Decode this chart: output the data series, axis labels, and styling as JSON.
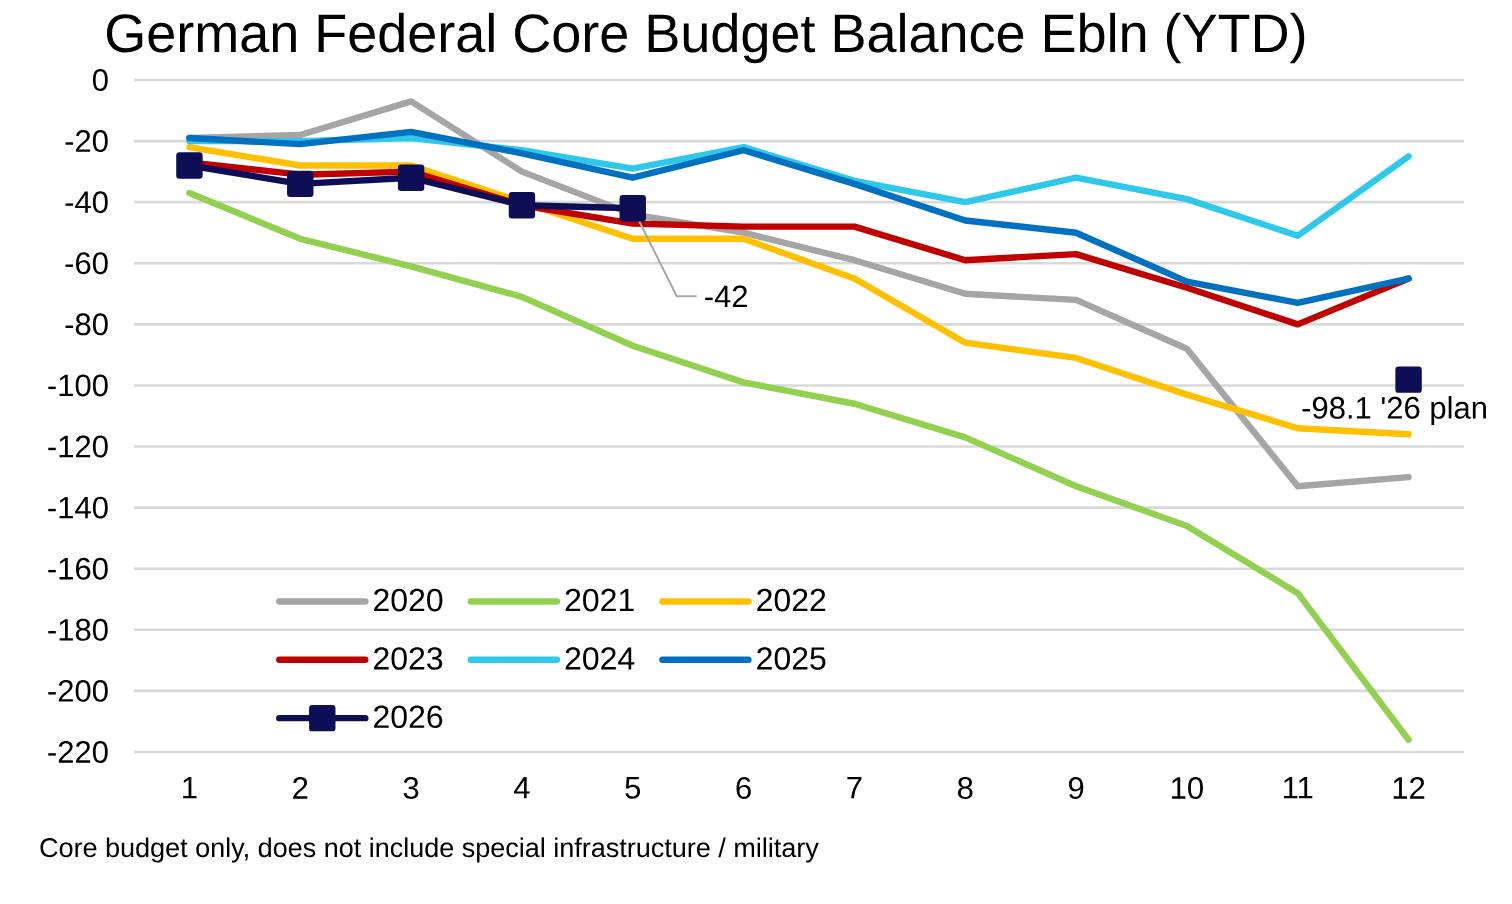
{
  "chart_data": {
    "type": "line",
    "title": "German Federal Core Budget Balance Ebln (YTD)",
    "categories": [
      "1",
      "2",
      "3",
      "4",
      "5",
      "6",
      "7",
      "8",
      "9",
      "10",
      "11",
      "12"
    ],
    "series": [
      {
        "name": "2020",
        "color": "#a5a5a5",
        "values": [
          -19,
          -18,
          -7,
          -30,
          -44,
          -50,
          -59,
          -70,
          -72,
          -88,
          -133,
          -130
        ]
      },
      {
        "name": "2021",
        "color": "#92d050",
        "values": [
          -37,
          -52,
          -61,
          -71,
          -87,
          -99,
          -106,
          -117,
          -133,
          -146,
          -168,
          -216
        ]
      },
      {
        "name": "2022",
        "color": "#ffc000",
        "values": [
          -22,
          -28,
          -28,
          -40,
          -52,
          -52,
          -65,
          -86,
          -91,
          -103,
          -114,
          -116
        ]
      },
      {
        "name": "2023",
        "color": "#c00000",
        "values": [
          -27,
          -31,
          -30,
          -41,
          -47,
          -48,
          -48,
          -59,
          -57,
          -68,
          -80,
          -65
        ]
      },
      {
        "name": "2024",
        "color": "#2ec8ea",
        "values": [
          -20,
          -20,
          -19,
          -23,
          -29,
          -22,
          -33,
          -40,
          -32,
          -39,
          -51,
          -25
        ]
      },
      {
        "name": "2025",
        "color": "#0070c0",
        "values": [
          -19,
          -21,
          -17,
          -24,
          -32,
          -23,
          -34,
          -46,
          -50,
          -66,
          -73,
          -65
        ]
      },
      {
        "name": "2026",
        "color": "#0e0e56",
        "marker": "square",
        "values": [
          -28,
          -34,
          -32,
          -41,
          -42,
          null,
          null,
          null,
          null,
          null,
          null,
          -98.1
        ],
        "value_labels": [
          null,
          null,
          null,
          null,
          "-42",
          null,
          null,
          null,
          null,
          null,
          null,
          "-98.1 '26 plan"
        ]
      }
    ],
    "ylim": [
      -220,
      0
    ],
    "yticks": [
      -220,
      -200,
      -180,
      -160,
      -140,
      -120,
      -100,
      -80,
      -60,
      -40,
      -20,
      0
    ],
    "grid": "y",
    "legend": "bottom left",
    "annotations": [
      "Core budget only, does not include special infrastructure / military"
    ]
  }
}
